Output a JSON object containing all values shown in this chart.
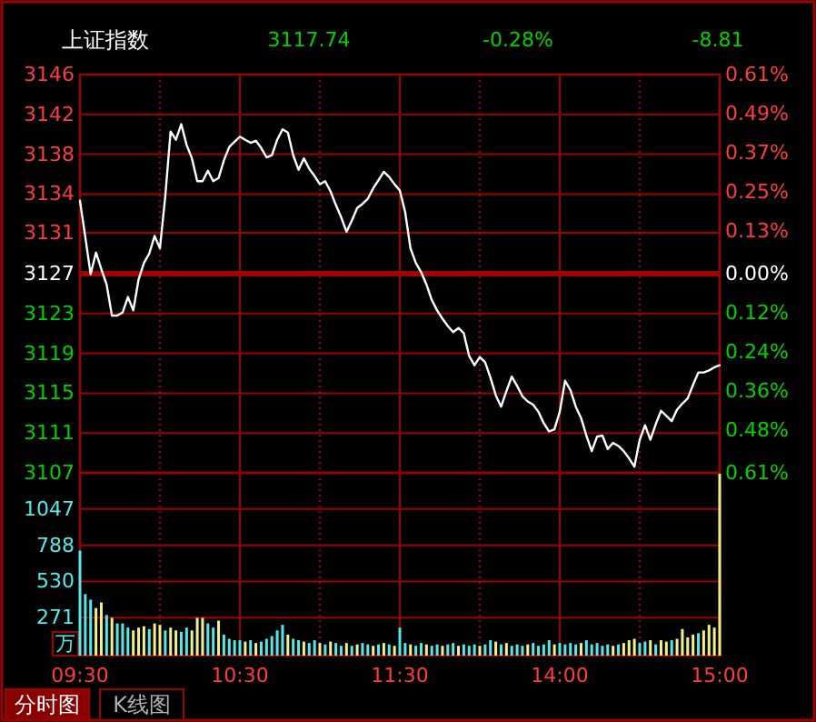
{
  "chart_data": [
    {
      "type": "line",
      "title": "上证指数",
      "annotations": [
        "3117.74",
        "-0.28%",
        "-8.81"
      ],
      "color": "#ffffff",
      "grid": true,
      "tick_labels": "y",
      "categories": [
        null,
        null,
        null,
        null,
        null,
        null,
        null,
        null,
        null,
        null,
        null,
        null,
        null,
        null,
        null,
        null,
        null,
        null,
        null,
        null,
        null,
        null,
        null,
        null,
        null,
        null,
        null,
        null,
        null,
        null,
        null,
        null,
        null,
        null,
        null,
        null,
        null,
        null,
        null,
        null,
        null,
        null,
        null,
        null,
        null,
        null,
        null,
        null,
        null,
        null,
        null,
        null,
        null,
        null,
        null,
        null,
        null,
        null,
        null,
        null,
        null,
        null,
        null,
        null,
        null,
        null,
        null,
        null,
        null,
        null,
        null,
        null,
        null,
        null,
        null,
        null,
        null,
        null,
        null,
        null,
        null,
        null,
        null,
        null,
        null,
        null,
        null,
        null,
        null,
        null,
        null,
        null,
        null,
        null,
        null,
        null,
        null,
        null,
        null,
        null,
        null,
        null,
        null,
        null,
        null,
        null,
        null,
        null,
        null,
        null,
        null,
        null,
        null,
        null,
        null,
        null,
        null,
        null,
        null,
        null,
        null
      ],
      "values": [
        3133.6,
        3130.1,
        3126.5,
        3128.6,
        3127.0,
        3125.5,
        3122.5,
        3122.5,
        3122.8,
        3124.3,
        3123.0,
        3126.0,
        3127.6,
        3128.5,
        3130.2,
        3129.0,
        3134.0,
        3140.3,
        3139.5,
        3141.0,
        3139.0,
        3137.7,
        3135.5,
        3135.5,
        3136.5,
        3135.5,
        3135.8,
        3137.5,
        3138.8,
        3139.3,
        3139.8,
        3139.5,
        3139.2,
        3139.4,
        3138.7,
        3137.8,
        3138.0,
        3139.5,
        3140.5,
        3140.2,
        3138.0,
        3136.6,
        3137.7,
        3136.7,
        3136.0,
        3135.2,
        3135.5,
        3134.5,
        3133.2,
        3132.0,
        3130.6,
        3131.7,
        3132.9,
        3133.3,
        3133.8,
        3134.8,
        3135.6,
        3136.4,
        3135.9,
        3135.2,
        3134.6,
        3132.5,
        3129.0,
        3127.6,
        3126.7,
        3125.5,
        3124.0,
        3123.0,
        3122.2,
        3121.5,
        3120.9,
        3121.3,
        3120.8,
        3118.6,
        3117.7,
        3118.5,
        3118.0,
        3116.5,
        3114.8,
        3113.7,
        3115.2,
        3116.6,
        3115.7,
        3114.7,
        3114.2,
        3113.9,
        3113.2,
        3112.1,
        3111.3,
        3111.5,
        3113.2,
        3116.2,
        3115.3,
        3113.7,
        3112.6,
        3110.9,
        3109.4,
        3110.8,
        3110.9,
        3109.6,
        3110.2,
        3109.9,
        3109.4,
        3108.7,
        3107.9,
        3110.5,
        3111.9,
        3110.5,
        3112.0,
        3113.3,
        3112.8,
        3112.3,
        3113.4,
        3114.0,
        3114.5,
        3115.8,
        3117.0,
        3117.0,
        3117.2,
        3117.5,
        3117.7
      ],
      "ylim": [
        3107.3,
        3145.8
      ],
      "yticks": [
        {
          "value": 3145.8,
          "label": "3146"
        },
        {
          "value": 3141.95,
          "label": "3142"
        },
        {
          "value": 3138.1,
          "label": "3138"
        },
        {
          "value": 3134.25,
          "label": "3134"
        },
        {
          "value": 3130.5,
          "label": "3131"
        },
        {
          "value": 3126.55,
          "label": "3127"
        },
        {
          "value": 3122.7,
          "label": "3123"
        },
        {
          "value": 3118.85,
          "label": "3119"
        },
        {
          "value": 3115,
          "label": "3115"
        },
        {
          "value": 3111.15,
          "label": "3111"
        },
        {
          "value": 3107.3,
          "label": "3107"
        }
      ],
      "y2lim": [
        -0.61,
        0.61
      ],
      "y2ticks": [
        {
          "value": 0.61,
          "label": "0.61%"
        },
        {
          "value": 0.49,
          "label": "0.49%"
        },
        {
          "value": 0.37,
          "label": "0.37%"
        },
        {
          "value": 0.25,
          "label": "0.25%"
        },
        {
          "value": 0.13,
          "label": "0.13%"
        },
        {
          "value": 0,
          "label": "0.00%"
        },
        {
          "value": -0.12,
          "label": "0.12%"
        },
        {
          "value": -0.24,
          "label": "0.24%"
        },
        {
          "value": -0.36,
          "label": "0.36%"
        },
        {
          "value": -0.48,
          "label": "0.48%"
        },
        {
          "value": -0.61,
          "label": "0.61%"
        }
      ],
      "ref_lines": [
        {
          "axis": "y",
          "value": 3126.55,
          "color": "#a00000"
        }
      ]
    },
    {
      "type": "bar",
      "ylabel": "万",
      "annotations": [
        "分时图",
        "K线图"
      ],
      "grid": true,
      "categories": [
        "09:30",
        null,
        null,
        null,
        null,
        null,
        null,
        null,
        null,
        null,
        null,
        null,
        null,
        null,
        null,
        null,
        null,
        null,
        null,
        null,
        null,
        null,
        null,
        null,
        null,
        null,
        null,
        null,
        null,
        null,
        "10:30",
        null,
        null,
        null,
        null,
        null,
        null,
        null,
        null,
        null,
        null,
        null,
        null,
        null,
        null,
        null,
        null,
        null,
        null,
        null,
        null,
        null,
        null,
        null,
        null,
        null,
        null,
        null,
        null,
        null,
        "11:30",
        null,
        null,
        null,
        null,
        null,
        null,
        null,
        null,
        null,
        null,
        null,
        null,
        null,
        null,
        null,
        null,
        null,
        null,
        null,
        null,
        null,
        null,
        null,
        null,
        null,
        null,
        null,
        null,
        null,
        "14:00",
        null,
        null,
        null,
        null,
        null,
        null,
        null,
        null,
        null,
        null,
        null,
        null,
        null,
        null,
        null,
        null,
        null,
        null,
        null,
        null,
        null,
        null,
        null,
        null,
        null,
        null,
        null,
        null,
        null,
        "15:00"
      ],
      "values": [
        750,
        440,
        400,
        340,
        380,
        290,
        270,
        230,
        230,
        200,
        180,
        200,
        210,
        190,
        230,
        220,
        180,
        200,
        180,
        170,
        200,
        180,
        270,
        270,
        230,
        200,
        250,
        150,
        120,
        110,
        110,
        100,
        110,
        90,
        100,
        120,
        140,
        180,
        220,
        150,
        120,
        110,
        100,
        90,
        110,
        90,
        80,
        100,
        90,
        70,
        90,
        70,
        80,
        90,
        80,
        70,
        80,
        90,
        80,
        70,
        200,
        90,
        80,
        70,
        90,
        80,
        70,
        80,
        70,
        80,
        90,
        70,
        80,
        70,
        80,
        70,
        80,
        110,
        100,
        80,
        90,
        70,
        80,
        70,
        80,
        90,
        70,
        80,
        110,
        80,
        90,
        80,
        90,
        80,
        90,
        110,
        80,
        90,
        70,
        80,
        70,
        80,
        90,
        110,
        120,
        90,
        100,
        110,
        80,
        110,
        100,
        110,
        120,
        190,
        130,
        150,
        160,
        180,
        220,
        200,
        1300
      ],
      "colors": [
        "#54e8e8",
        "#54e8e8",
        "#54e8e8",
        "#f0f08c",
        "#f0f08c",
        "#54e8e8",
        "#f0f08c",
        "#54e8e8",
        "#54e8e8",
        "#54e8e8",
        "#f0f08c",
        "#f0f08c",
        "#f0f08c",
        "#54e8e8",
        "#f0f08c",
        "#f0f08c",
        "#54e8e8",
        "#f0f08c",
        "#f0f08c",
        "#54e8e8",
        "#54e8e8",
        "#f0f08c",
        "#f0f08c",
        "#f0f08c",
        "#54e8e8",
        "#54e8e8",
        "#f0f08c",
        "#54e8e8",
        "#54e8e8",
        "#54e8e8",
        "#54e8e8",
        "#f0f08c",
        "#54e8e8",
        "#f0f08c",
        "#54e8e8",
        "#54e8e8",
        "#54e8e8",
        "#54e8e8",
        "#54e8e8",
        "#f0f08c",
        "#54e8e8",
        "#54e8e8",
        "#f0f08c",
        "#54e8e8",
        "#54e8e8",
        "#f0f08c",
        "#54e8e8",
        "#f0f08c",
        "#54e8e8",
        "#54e8e8",
        "#f0f08c",
        "#54e8e8",
        "#f0f08c",
        "#54e8e8",
        "#54e8e8",
        "#f0f08c",
        "#54e8e8",
        "#f0f08c",
        "#54e8e8",
        "#f0f08c",
        "#54e8e8",
        "#54e8e8",
        "#f0f08c",
        "#54e8e8",
        "#54e8e8",
        "#f0f08c",
        "#54e8e8",
        "#54e8e8",
        "#f0f08c",
        "#54e8e8",
        "#54e8e8",
        "#f0f08c",
        "#54e8e8",
        "#54e8e8",
        "#54e8e8",
        "#f0f08c",
        "#54e8e8",
        "#54e8e8",
        "#f0f08c",
        "#54e8e8",
        "#f0f08c",
        "#54e8e8",
        "#54e8e8",
        "#54e8e8",
        "#f0f08c",
        "#54e8e8",
        "#54e8e8",
        "#54e8e8",
        "#54e8e8",
        "#f0f08c",
        "#54e8e8",
        "#54e8e8",
        "#54e8e8",
        "#54e8e8",
        "#f0f08c",
        "#54e8e8",
        "#54e8e8",
        "#54e8e8",
        "#54e8e8",
        "#54e8e8",
        "#f0f08c",
        "#54e8e8",
        "#f0f08c",
        "#f0f08c",
        "#f0f08c",
        "#54e8e8",
        "#54e8e8",
        "#f0f08c",
        "#54e8e8",
        "#f0f08c",
        "#f0f08c",
        "#54e8e8",
        "#f0f08c",
        "#f0f08c",
        "#f0f08c",
        "#f0f08c",
        "#54e8e8",
        "#f0f08c",
        "#f0f08c",
        "#f0f08c",
        "#f0f08c"
      ],
      "ylim": [
        0,
        1306
      ],
      "yticks": [
        271,
        530,
        788,
        1047
      ]
    }
  ]
}
